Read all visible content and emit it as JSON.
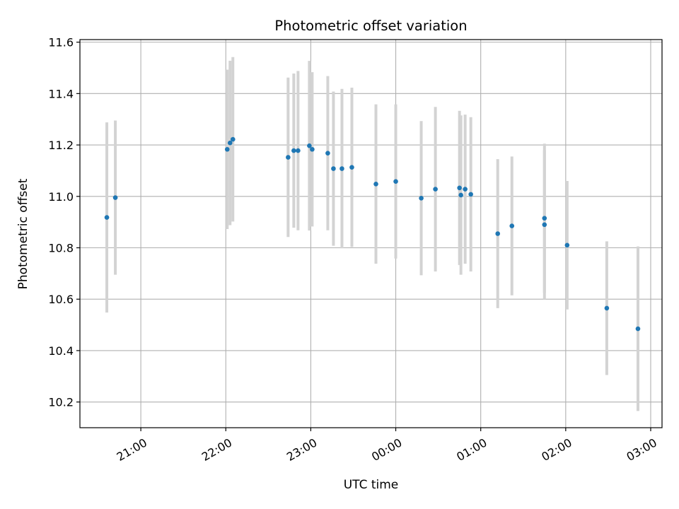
{
  "chart_data": {
    "type": "scatter",
    "title": "Photometric offset variation",
    "xlabel": "UTC time",
    "ylabel": "Photometric offset",
    "xlim": [
      "20:17",
      "03:08"
    ],
    "ylim": [
      10.1,
      11.61
    ],
    "grid": true,
    "legend": "none",
    "xticks": [
      "21:00",
      "22:00",
      "23:00",
      "00:00",
      "01:00",
      "02:00",
      "03:00"
    ],
    "yticks": [
      "10.2",
      "10.4",
      "10.6",
      "10.8",
      "11.0",
      "11.2",
      "11.4",
      "11.6"
    ],
    "point_color": "#1f77b4",
    "errorbar_color": "#d3d3d3",
    "points": [
      {
        "x": "20:36",
        "y": 10.918,
        "err": 0.37
      },
      {
        "x": "20:42",
        "y": 10.995,
        "err": 0.3
      },
      {
        "x": "22:01",
        "y": 11.183,
        "err": 0.31
      },
      {
        "x": "22:03",
        "y": 11.208,
        "err": 0.32
      },
      {
        "x": "22:05",
        "y": 11.222,
        "err": 0.32
      },
      {
        "x": "22:44",
        "y": 11.152,
        "err": 0.31
      },
      {
        "x": "22:48",
        "y": 11.178,
        "err": 0.3
      },
      {
        "x": "22:51",
        "y": 11.178,
        "err": 0.31
      },
      {
        "x": "22:59",
        "y": 11.197,
        "err": 0.33
      },
      {
        "x": "23:01",
        "y": 11.183,
        "err": 0.3
      },
      {
        "x": "23:12",
        "y": 11.168,
        "err": 0.3
      },
      {
        "x": "23:16",
        "y": 11.108,
        "err": 0.3
      },
      {
        "x": "23:22",
        "y": 11.108,
        "err": 0.31
      },
      {
        "x": "23:29",
        "y": 11.113,
        "err": 0.31
      },
      {
        "x": "23:46",
        "y": 11.048,
        "err": 0.31
      },
      {
        "x": "00:00",
        "y": 11.058,
        "err": 0.3
      },
      {
        "x": "00:18",
        "y": 10.993,
        "err": 0.3
      },
      {
        "x": "00:28",
        "y": 11.028,
        "err": 0.32
      },
      {
        "x": "00:45",
        "y": 11.033,
        "err": 0.3
      },
      {
        "x": "00:46",
        "y": 11.005,
        "err": 0.31
      },
      {
        "x": "00:49",
        "y": 11.028,
        "err": 0.29
      },
      {
        "x": "00:53",
        "y": 11.008,
        "err": 0.3
      },
      {
        "x": "01:12",
        "y": 10.855,
        "err": 0.29
      },
      {
        "x": "01:22",
        "y": 10.885,
        "err": 0.27
      },
      {
        "x": "01:45",
        "y": 10.915,
        "err": 0.29
      },
      {
        "x": "01:45",
        "y": 10.89,
        "err": 0.29
      },
      {
        "x": "02:01",
        "y": 10.81,
        "err": 0.25
      },
      {
        "x": "02:29",
        "y": 10.565,
        "err": 0.26
      },
      {
        "x": "02:51",
        "y": 10.485,
        "err": 0.32
      }
    ]
  }
}
